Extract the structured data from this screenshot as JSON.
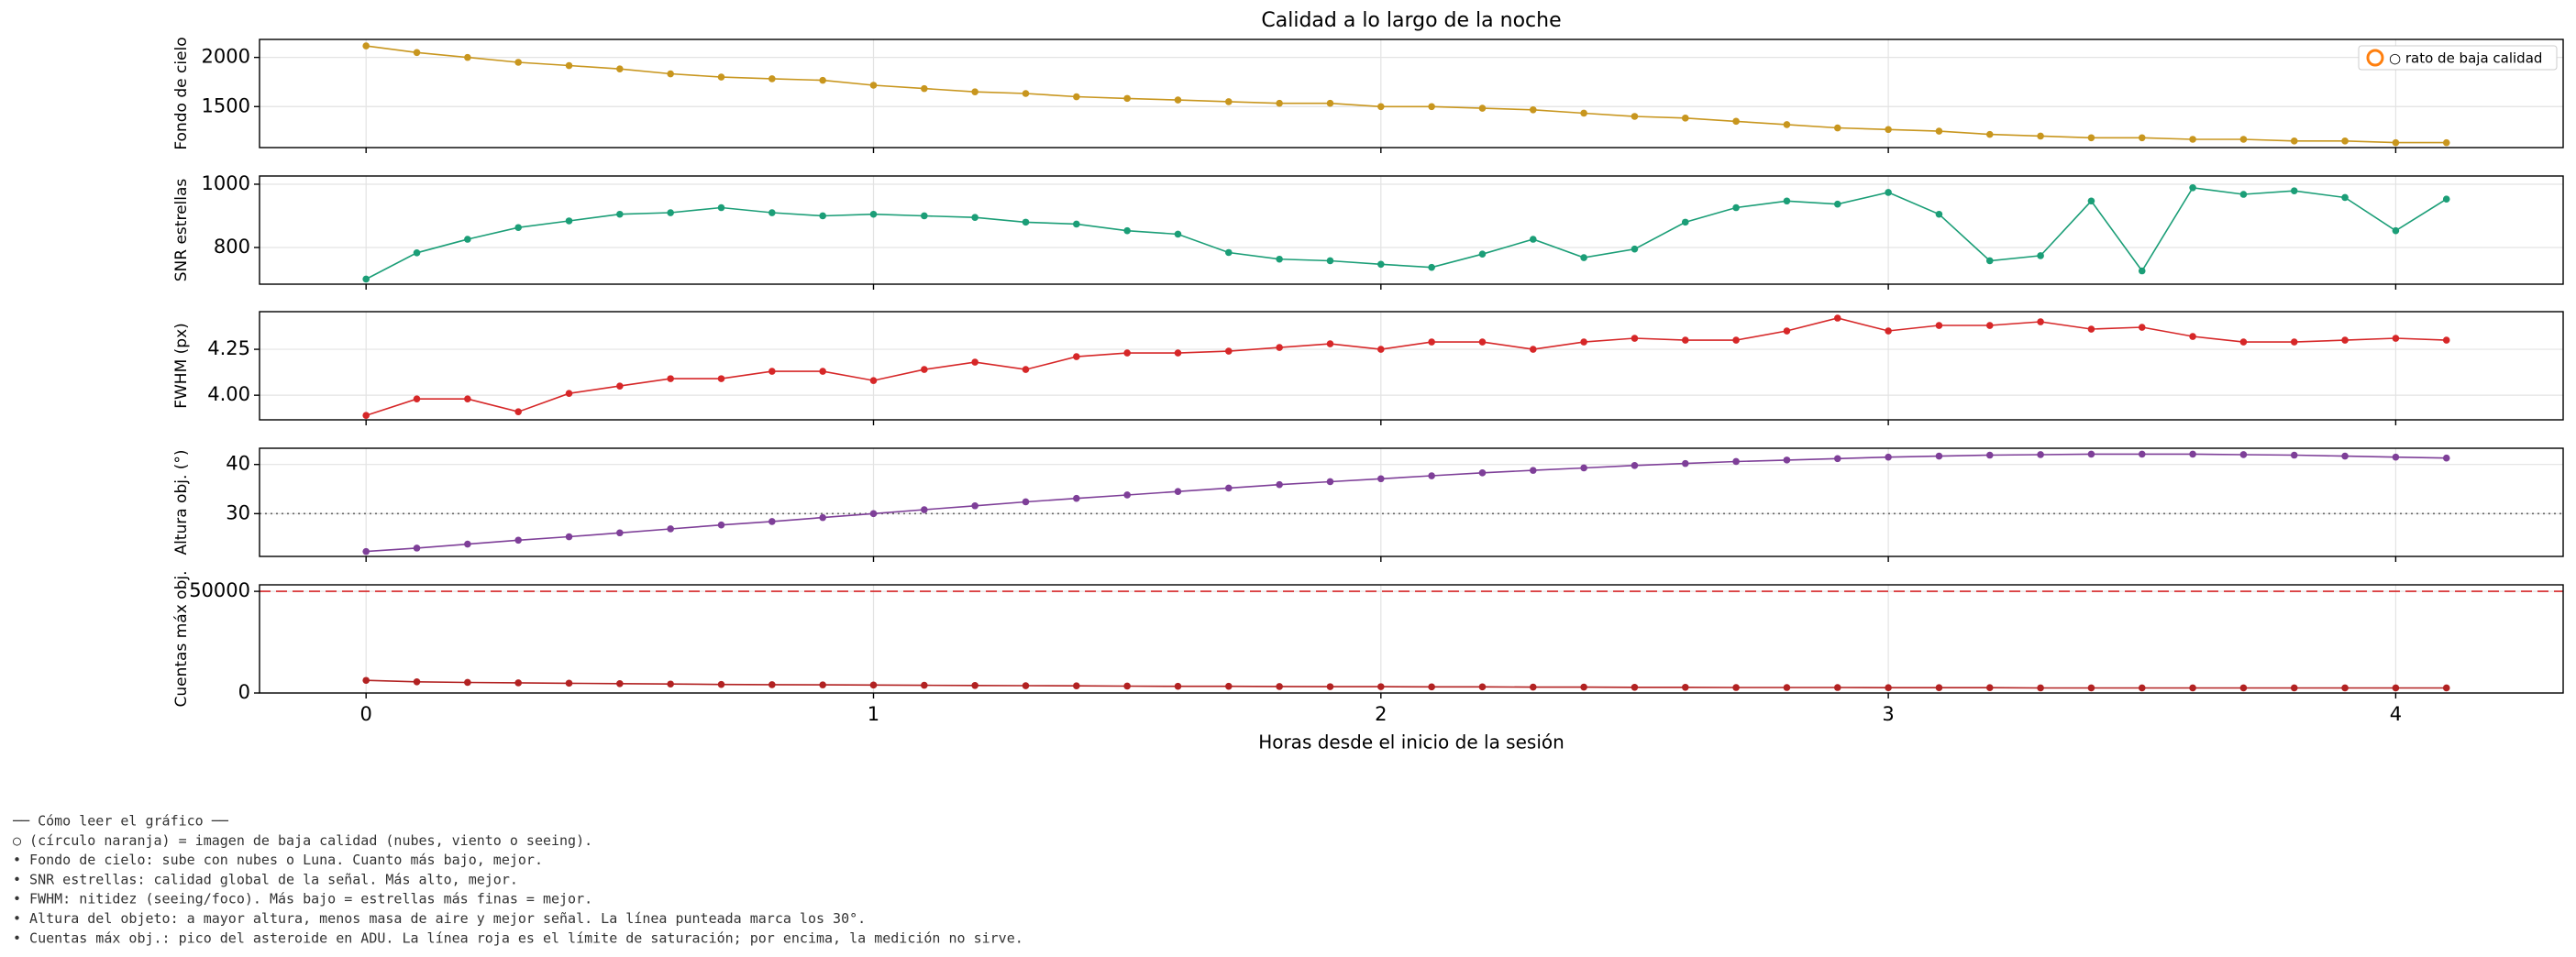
{
  "chart_data": [
    {
      "type": "line",
      "title": "Calidad a lo largo de la noche",
      "ylabel": "Fondo de cielo",
      "color": "#c8961e",
      "grid": true,
      "legend": {
        "label": "○ rato de baja calidad",
        "color": "#ff7f0e",
        "loc": "upper right"
      },
      "xlim": [
        -0.21,
        4.33
      ],
      "xticks": [
        0,
        1,
        2,
        3,
        4
      ],
      "ylim": [
        1083,
        2183
      ],
      "yticks": [
        1500,
        2000
      ],
      "x": [
        0,
        0.1,
        0.2,
        0.3,
        0.4,
        0.5,
        0.6,
        0.7,
        0.8,
        0.9,
        1.0,
        1.1,
        1.2,
        1.3,
        1.4,
        1.5,
        1.6,
        1.7,
        1.8,
        1.9,
        2.0,
        2.1,
        2.2,
        2.3,
        2.4,
        2.5,
        2.6,
        2.7,
        2.8,
        2.9,
        3.0,
        3.1,
        3.2,
        3.3,
        3.4,
        3.5,
        3.6,
        3.7,
        3.8,
        3.9,
        4.0,
        4.1
      ],
      "values": [
        2117,
        2050,
        2000,
        1950,
        1917,
        1883,
        1833,
        1800,
        1783,
        1767,
        1717,
        1683,
        1650,
        1633,
        1600,
        1583,
        1567,
        1550,
        1533,
        1533,
        1500,
        1500,
        1483,
        1467,
        1433,
        1400,
        1383,
        1350,
        1317,
        1283,
        1267,
        1250,
        1217,
        1200,
        1183,
        1183,
        1167,
        1167,
        1150,
        1150,
        1133,
        1133
      ]
    },
    {
      "type": "line",
      "ylabel": "SNR estrellas",
      "color": "#1b9e77",
      "grid": true,
      "xlim": [
        -0.21,
        4.33
      ],
      "xticks": [
        0,
        1,
        2,
        3,
        4
      ],
      "ylim": [
        684,
        1026
      ],
      "yticks": [
        800,
        1000
      ],
      "x": [
        0,
        0.1,
        0.2,
        0.3,
        0.4,
        0.5,
        0.6,
        0.7,
        0.8,
        0.9,
        1.0,
        1.1,
        1.2,
        1.3,
        1.4,
        1.5,
        1.6,
        1.7,
        1.8,
        1.9,
        2.0,
        2.1,
        2.2,
        2.3,
        2.4,
        2.5,
        2.6,
        2.7,
        2.8,
        2.9,
        3.0,
        3.1,
        3.2,
        3.3,
        3.4,
        3.5,
        3.6,
        3.7,
        3.8,
        3.9,
        4.0,
        4.1
      ],
      "values": [
        700,
        783,
        826,
        863,
        884,
        905,
        910,
        926,
        910,
        900,
        905,
        900,
        895,
        880,
        874,
        853,
        842,
        784,
        763,
        758,
        747,
        737,
        779,
        826,
        768,
        795,
        880,
        926,
        947,
        937,
        974,
        905,
        758,
        774,
        947,
        726,
        989,
        968,
        979,
        958,
        853,
        953
      ]
    },
    {
      "type": "line",
      "ylabel": "FWHM (px)",
      "color": "#d62728",
      "grid": true,
      "xlim": [
        -0.21,
        4.33
      ],
      "xticks": [
        0,
        1,
        2,
        3,
        4
      ],
      "ylim": [
        3.866,
        4.455
      ],
      "yticks": [
        {
          "value": 4.0,
          "label": "4.00"
        },
        {
          "value": 4.25,
          "label": "4.25"
        }
      ],
      "x": [
        0,
        0.1,
        0.2,
        0.3,
        0.4,
        0.5,
        0.6,
        0.7,
        0.8,
        0.9,
        1.0,
        1.1,
        1.2,
        1.3,
        1.4,
        1.5,
        1.6,
        1.7,
        1.8,
        1.9,
        2.0,
        2.1,
        2.2,
        2.3,
        2.4,
        2.5,
        2.6,
        2.7,
        2.8,
        2.9,
        3.0,
        3.1,
        3.2,
        3.3,
        3.4,
        3.5,
        3.6,
        3.7,
        3.8,
        3.9,
        4.0,
        4.1
      ],
      "values": [
        3.89,
        3.98,
        3.98,
        3.91,
        4.01,
        4.05,
        4.09,
        4.09,
        4.13,
        4.13,
        4.08,
        4.14,
        4.18,
        4.14,
        4.21,
        4.23,
        4.23,
        4.24,
        4.26,
        4.28,
        4.25,
        4.29,
        4.29,
        4.25,
        4.29,
        4.31,
        4.3,
        4.3,
        4.35,
        4.42,
        4.35,
        4.38,
        4.38,
        4.4,
        4.36,
        4.37,
        4.32,
        4.29,
        4.29,
        4.3,
        4.31,
        4.3
      ]
    },
    {
      "type": "line",
      "ylabel": "Altura obj. (°)",
      "color": "#7e3f98",
      "grid": true,
      "hline": {
        "value": 30,
        "style": "dotted",
        "color": "#666666"
      },
      "xlim": [
        -0.21,
        4.33
      ],
      "xticks": [
        0,
        1,
        2,
        3,
        4
      ],
      "ylim": [
        21.3,
        43.3
      ],
      "yticks": [
        30,
        40
      ],
      "x": [
        0,
        0.1,
        0.2,
        0.3,
        0.4,
        0.5,
        0.6,
        0.7,
        0.8,
        0.9,
        1.0,
        1.1,
        1.2,
        1.3,
        1.4,
        1.5,
        1.6,
        1.7,
        1.8,
        1.9,
        2.0,
        2.1,
        2.2,
        2.3,
        2.4,
        2.5,
        2.6,
        2.7,
        2.8,
        2.9,
        3.0,
        3.1,
        3.2,
        3.3,
        3.4,
        3.5,
        3.6,
        3.7,
        3.8,
        3.9,
        4.0,
        4.1
      ],
      "values": [
        22.3,
        23,
        23.8,
        24.6,
        25.3,
        26.1,
        26.9,
        27.7,
        28.4,
        29.2,
        30,
        30.8,
        31.6,
        32.4,
        33.1,
        33.8,
        34.5,
        35.2,
        35.9,
        36.5,
        37.1,
        37.7,
        38.3,
        38.8,
        39.3,
        39.8,
        40.2,
        40.6,
        40.9,
        41.2,
        41.5,
        41.7,
        41.9,
        42,
        42.1,
        42.1,
        42.1,
        42,
        41.9,
        41.7,
        41.5,
        41.3
      ]
    },
    {
      "type": "line",
      "ylabel": "Cuentas máx obj.",
      "xlabel": "Horas desde el inicio de la sesión",
      "color": "#b22222",
      "grid": true,
      "show_xtick_labels": true,
      "hline": {
        "value": 50000,
        "style": "dashed",
        "color": "#d62728"
      },
      "xlim": [
        -0.21,
        4.33
      ],
      "xticks": [
        0,
        1,
        2,
        3,
        4
      ],
      "ylim": [
        0,
        53200
      ],
      "yticks": [
        0,
        50000
      ],
      "x": [
        0,
        0.1,
        0.2,
        0.3,
        0.4,
        0.5,
        0.6,
        0.7,
        0.8,
        0.9,
        1.0,
        1.1,
        1.2,
        1.3,
        1.4,
        1.5,
        1.6,
        1.7,
        1.8,
        1.9,
        2.0,
        2.1,
        2.2,
        2.3,
        2.4,
        2.5,
        2.6,
        2.7,
        2.8,
        2.9,
        3.0,
        3.1,
        3.2,
        3.3,
        3.4,
        3.5,
        3.6,
        3.7,
        3.8,
        3.9,
        4.0,
        4.1
      ],
      "values": [
        6200,
        5500,
        5200,
        5000,
        4800,
        4600,
        4400,
        4200,
        4100,
        4000,
        3900,
        3800,
        3700,
        3600,
        3500,
        3400,
        3300,
        3300,
        3200,
        3100,
        3100,
        3000,
        3000,
        2900,
        2900,
        2800,
        2800,
        2700,
        2700,
        2700,
        2600,
        2600,
        2600,
        2500,
        2500,
        2500,
        2500,
        2500,
        2500,
        2500,
        2500,
        2500
      ]
    }
  ],
  "notes": [
    "── Cómo leer el gráfico ──",
    "○ (círculo naranja) = imagen de baja calidad (nubes, viento o seeing).",
    "• Fondo de cielo: sube con nubes o Luna. Cuanto más bajo, mejor.",
    "• SNR estrellas: calidad global de la señal. Más alto, mejor.",
    "• FWHM: nitidez (seeing/foco). Más bajo = estrellas más finas = mejor.",
    "• Altura del objeto: a mayor altura, menos masa de aire y mejor señal. La línea punteada marca los 30°.",
    "• Cuentas máx obj.: pico del asteroide en ADU. La línea roja es el límite de saturación; por encima, la medición no sirve."
  ]
}
